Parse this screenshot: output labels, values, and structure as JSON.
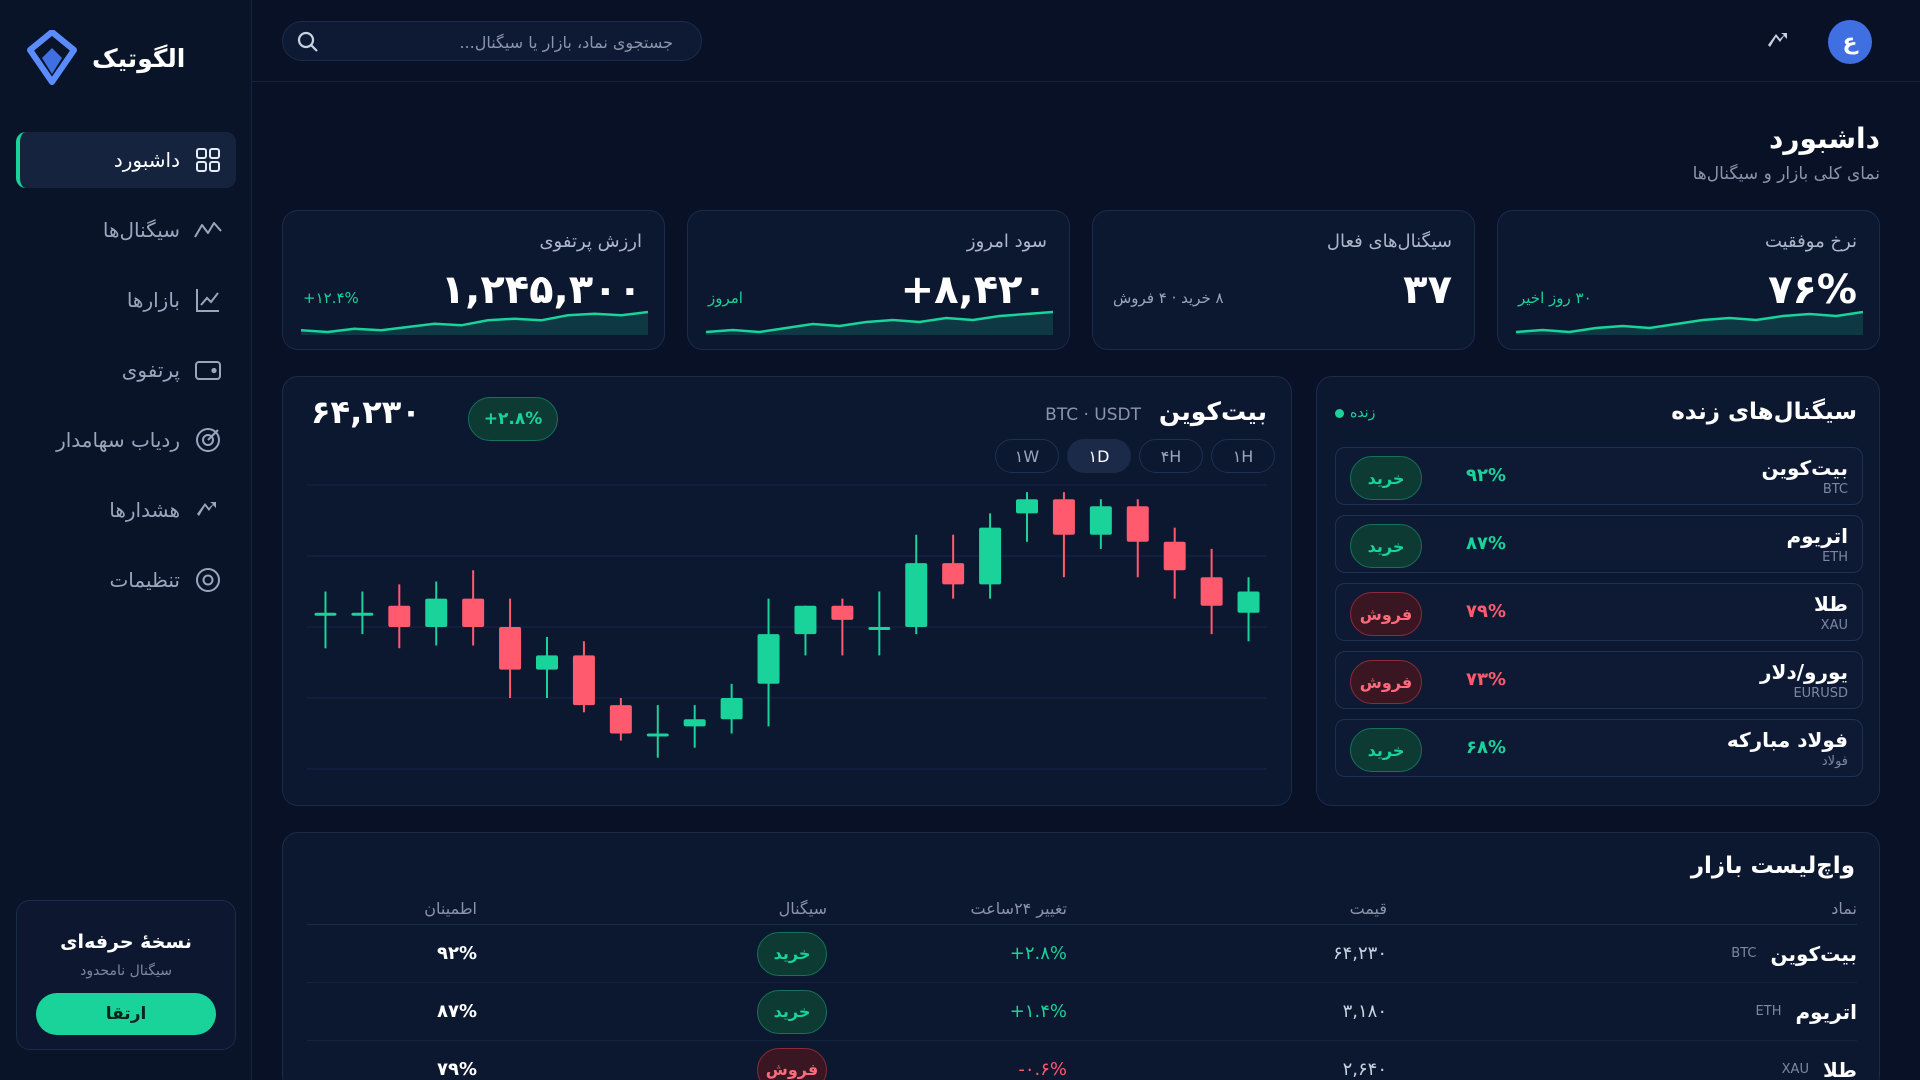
{
  "app": {
    "name": "الگوتیک"
  },
  "search": {
    "placeholder": "جستجوی نماد، بازار یا سیگنال..."
  },
  "user": {
    "avatar_letter": "ع"
  },
  "sidebar": {
    "items": [
      {
        "label": "داشبورد",
        "icon": "grid-icon",
        "active": true
      },
      {
        "label": "سیگنال‌ها",
        "icon": "activity-icon",
        "active": false
      },
      {
        "label": "بازارها",
        "icon": "line-chart-icon",
        "active": false
      },
      {
        "label": "پرتفوی",
        "icon": "wallet-icon",
        "active": false
      },
      {
        "label": "ردیاب سهامدار",
        "icon": "target-icon",
        "active": false
      },
      {
        "label": "هشدارها",
        "icon": "trend-alert-icon",
        "active": false
      },
      {
        "label": "تنظیمات",
        "icon": "settings-icon",
        "active": false
      }
    ],
    "promo": {
      "title": "نسخهٔ حرفه‌ای",
      "subtitle": "سیگنال نامحدود",
      "button": "ارتقا"
    }
  },
  "page": {
    "title": "داشبورد",
    "subtitle": "نمای کلی بازار و سیگنال‌ها"
  },
  "stats": [
    {
      "label": "ارزش پرتفوی",
      "value": "۱,۲۴۵,۳۰۰",
      "note": "+۱۲.۴%",
      "note_color": "green",
      "spark": [
        6,
        5,
        7,
        6,
        8,
        10,
        9,
        12,
        13,
        12,
        15,
        16,
        15,
        17
      ]
    },
    {
      "label": "سود امروز",
      "value": "+۸,۴۲۰",
      "note": "امروز",
      "note_color": "green",
      "spark": [
        6,
        7,
        6,
        8,
        10,
        9,
        11,
        12,
        11,
        13,
        12,
        14,
        15,
        16
      ]
    },
    {
      "label": "سیگنال‌های فعال",
      "value": "۳۷",
      "note": "۸ خرید · ۴ فروش",
      "note_color": "grey",
      "spark": []
    },
    {
      "label": "نرخ موفقیت",
      "value": "۷۶%",
      "note": "۳۰ روز اخیر",
      "note_color": "green",
      "spark": [
        6,
        7,
        6,
        8,
        9,
        8,
        10,
        12,
        13,
        12,
        14,
        15,
        14,
        16
      ]
    }
  ],
  "chart": {
    "title": "بیت‌کوین",
    "pair": "BTC · USDT",
    "price": "۶۴,۲۳۰",
    "change": "+۲.۸%",
    "timeframes": [
      {
        "label": "۱H",
        "active": false
      },
      {
        "label": "۴H",
        "active": false
      },
      {
        "label": "۱D",
        "active": true
      },
      {
        "label": "۱W",
        "active": false
      }
    ]
  },
  "chart_data": {
    "type": "candlestick",
    "candles": [
      {
        "o": 55.0,
        "h": 56.5,
        "l": 52.5,
        "c": 55.0
      },
      {
        "o": 55.0,
        "h": 56.5,
        "l": 53.5,
        "c": 55.0
      },
      {
        "o": 55.5,
        "h": 57.0,
        "l": 52.5,
        "c": 54.0
      },
      {
        "o": 54.0,
        "h": 57.2,
        "l": 52.7,
        "c": 56.0
      },
      {
        "o": 56.0,
        "h": 58.0,
        "l": 52.7,
        "c": 54.0
      },
      {
        "o": 54.0,
        "h": 56.0,
        "l": 49.0,
        "c": 51.0
      },
      {
        "o": 51.0,
        "h": 53.3,
        "l": 49.0,
        "c": 52.0
      },
      {
        "o": 52.0,
        "h": 53.0,
        "l": 48.0,
        "c": 48.5
      },
      {
        "o": 48.5,
        "h": 49.0,
        "l": 46.0,
        "c": 46.5
      },
      {
        "o": 46.5,
        "h": 48.5,
        "l": 44.8,
        "c": 46.5
      },
      {
        "o": 47.0,
        "h": 48.5,
        "l": 45.5,
        "c": 47.5
      },
      {
        "o": 47.5,
        "h": 50.0,
        "l": 46.5,
        "c": 49.0
      },
      {
        "o": 50.0,
        "h": 56.0,
        "l": 47.0,
        "c": 53.5
      },
      {
        "o": 53.5,
        "h": 55.5,
        "l": 52.0,
        "c": 55.5
      },
      {
        "o": 55.5,
        "h": 56.0,
        "l": 52.0,
        "c": 54.5
      },
      {
        "o": 54.0,
        "h": 56.5,
        "l": 52.0,
        "c": 54.0
      },
      {
        "o": 54.0,
        "h": 60.5,
        "l": 53.5,
        "c": 58.5
      },
      {
        "o": 58.5,
        "h": 60.5,
        "l": 56.0,
        "c": 57.0
      },
      {
        "o": 57.0,
        "h": 62.0,
        "l": 56.0,
        "c": 61.0
      },
      {
        "o": 62.0,
        "h": 63.5,
        "l": 60.0,
        "c": 63.0
      },
      {
        "o": 63.0,
        "h": 63.5,
        "l": 57.5,
        "c": 60.5
      },
      {
        "o": 60.5,
        "h": 63.0,
        "l": 59.5,
        "c": 62.5
      },
      {
        "o": 62.5,
        "h": 63.0,
        "l": 57.5,
        "c": 60.0
      },
      {
        "o": 60.0,
        "h": 61.0,
        "l": 56.0,
        "c": 58.0
      },
      {
        "o": 57.5,
        "h": 59.5,
        "l": 53.5,
        "c": 55.5
      },
      {
        "o": 55.0,
        "h": 57.5,
        "l": 53.0,
        "c": 56.5
      }
    ],
    "ylim": [
      44,
      64
    ],
    "grid": true
  },
  "signals": {
    "title": "سیگنال‌های زنده",
    "live_label": "زنده",
    "items": [
      {
        "name": "بیت‌کوین",
        "symbol": "BTC",
        "confidence": "۹۲%",
        "action": "خرید",
        "type": "buy"
      },
      {
        "name": "اتریوم",
        "symbol": "ETH",
        "confidence": "۸۷%",
        "action": "خرید",
        "type": "buy"
      },
      {
        "name": "طلا",
        "symbol": "XAU",
        "confidence": "۷۹%",
        "action": "فروش",
        "type": "sell"
      },
      {
        "name": "یورو/دلار",
        "symbol": "EURUSD",
        "confidence": "۷۳%",
        "action": "فروش",
        "type": "sell"
      },
      {
        "name": "فولاد مبارکه",
        "symbol": "فولاد",
        "confidence": "۶۸%",
        "action": "خرید",
        "type": "buy"
      }
    ]
  },
  "watchlist": {
    "title": "واچ‌لیست بازار",
    "columns": {
      "symbol": "نماد",
      "price": "قیمت",
      "change": "تغییر ۲۴ساعت",
      "signal": "سیگنال",
      "confidence": "اطمینان"
    },
    "rows": [
      {
        "name": "بیت‌کوین",
        "symbol": "BTC",
        "price": "۶۴,۲۳۰",
        "change": "+۲.۸%",
        "dir": "up",
        "signal": "خرید",
        "type": "buy",
        "confidence": "۹۲%"
      },
      {
        "name": "اتریوم",
        "symbol": "ETH",
        "price": "۳,۱۸۰",
        "change": "+۱.۴%",
        "dir": "up",
        "signal": "خرید",
        "type": "buy",
        "confidence": "۸۷%"
      },
      {
        "name": "طلا",
        "symbol": "XAU",
        "price": "۲,۶۴۰",
        "change": "-۰.۶%",
        "dir": "down",
        "signal": "فروش",
        "type": "sell",
        "confidence": "۷۹%"
      }
    ]
  },
  "colors": {
    "accent": "#19d39a",
    "negative": "#ff5a6e",
    "background": "#081125",
    "card": "#0c1730"
  }
}
